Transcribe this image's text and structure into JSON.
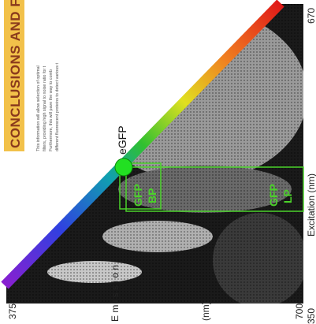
{
  "heading": "CONCLUSIONS AND F",
  "paragraph": [
    "This information will allow selection of optimal",
    "filters, providing high signal to noise ratio for t",
    "Furthermore, this will pave the way to comb",
    "different fluorescent proteins to detect various t"
  ],
  "plot": {
    "marker_label": "eGFP",
    "filter_bp": [
      "GFP",
      "BP"
    ],
    "filter_lp": [
      "GFP",
      "LP"
    ],
    "emission_axis": {
      "label": "E m i s s i o n",
      "unit": "(nm)",
      "start": 375,
      "end": 700
    },
    "excitation_axis": {
      "label": "Excitation (nm)",
      "start": 350,
      "end": 670
    }
  }
}
